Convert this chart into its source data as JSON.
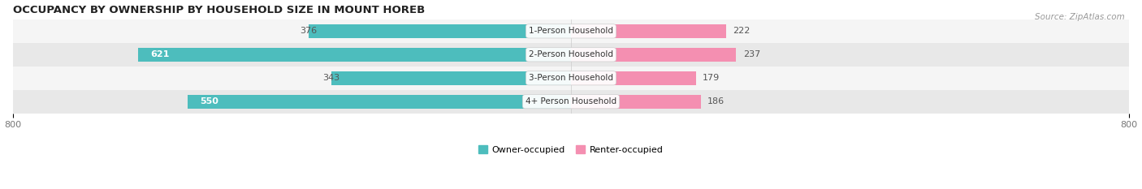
{
  "title": "OCCUPANCY BY OWNERSHIP BY HOUSEHOLD SIZE IN MOUNT HOREB",
  "source": "Source: ZipAtlas.com",
  "categories": [
    "1-Person Household",
    "2-Person Household",
    "3-Person Household",
    "4+ Person Household"
  ],
  "owner_values": [
    376,
    621,
    343,
    550
  ],
  "renter_values": [
    222,
    237,
    179,
    186
  ],
  "owner_color": "#4dbdbd",
  "renter_color": "#f48fb1",
  "axis_max": 800,
  "axis_min": -800,
  "legend_owner": "Owner-occupied",
  "legend_renter": "Renter-occupied",
  "bar_height": 0.6,
  "row_bg_even": "#f5f5f5",
  "row_bg_odd": "#e8e8e8",
  "title_fontsize": 9.5,
  "label_fontsize": 8.0,
  "source_fontsize": 7.5,
  "owner_inside_threshold": 400,
  "tick_label_color": "#777777"
}
